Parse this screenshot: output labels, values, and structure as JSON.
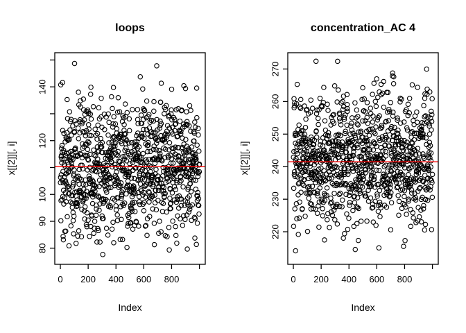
{
  "figure": {
    "background": "#ffffff",
    "text_color": "#000000",
    "axis_color": "#000000"
  },
  "chart_data": [
    {
      "type": "scatter",
      "title": "loops",
      "xlabel": "Index",
      "ylabel": "x[[2]][, i]",
      "x_axis": {
        "ticks": [
          0,
          200,
          400,
          600,
          800,
          1000
        ],
        "tick_labels": [
          "0",
          "200",
          "400",
          "600",
          "800",
          ""
        ],
        "lim": [
          -40,
          1042
        ]
      },
      "y_axis": {
        "ticks": [
          80,
          90,
          100,
          110,
          120,
          130,
          140,
          150
        ],
        "tick_labels": [
          "80",
          "90",
          "100",
          "",
          "120",
          "",
          "140",
          ""
        ],
        "lim": [
          74,
          152.7
        ]
      },
      "points": {
        "n": 1000,
        "x_range": [
          1,
          1000
        ],
        "mean": 110.3,
        "sd": 12.5,
        "min": 77,
        "max": 149.5,
        "marker": "open-circle",
        "color": "#000000",
        "seed": 20240817
      },
      "ref_line": {
        "value": 110.3,
        "color": "#ff0000"
      },
      "grid": false,
      "legend": false
    },
    {
      "type": "scatter",
      "title": "concentration_AC 4",
      "xlabel": "Index",
      "ylabel": "x[[2]][, i]",
      "x_axis": {
        "ticks": [
          0,
          200,
          400,
          600,
          800,
          1000
        ],
        "tick_labels": [
          "0",
          "200",
          "400",
          "600",
          "800",
          ""
        ],
        "lim": [
          -40,
          1042
        ]
      },
      "y_axis": {
        "ticks": [
          220,
          230,
          240,
          250,
          260,
          270
        ],
        "tick_labels": [
          "220",
          "230",
          "240",
          "250",
          "260",
          "270"
        ],
        "lim": [
          210,
          275
        ]
      },
      "points": {
        "n": 1000,
        "x_range": [
          1,
          1000
        ],
        "mean": 241.5,
        "sd": 10,
        "min": 213,
        "max": 272.5,
        "marker": "open-circle",
        "color": "#000000",
        "seed": 91521
      },
      "ref_line": {
        "value": 241.5,
        "color": "#ff0000"
      },
      "grid": false,
      "legend": false
    }
  ]
}
